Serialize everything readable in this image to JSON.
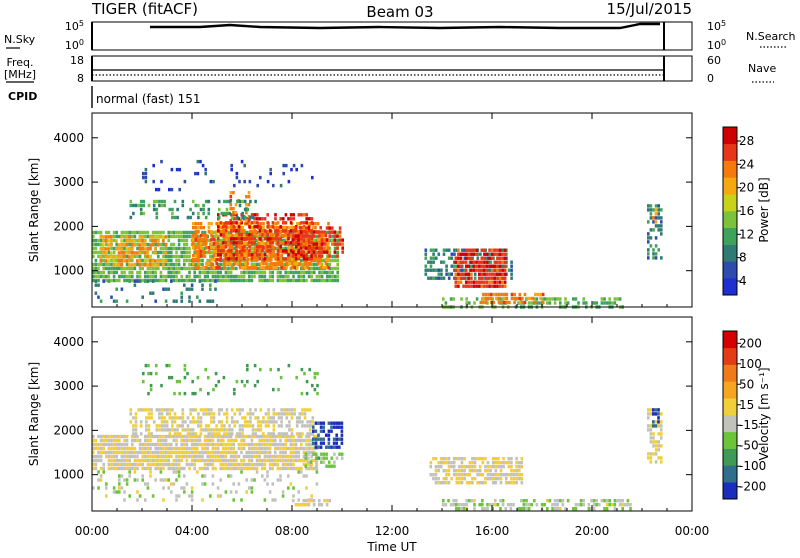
{
  "header": {
    "radar": "TIGER (fitACF)",
    "beam": "Beam 03",
    "date": "15/Jul/2015"
  },
  "ctrl": {
    "nsky_label": "N.Sky",
    "nsearch_label": "N.Search",
    "freq_label_1": "Freq.",
    "freq_label_2": "[MHz]",
    "nave_label": "Nave",
    "cpid_label": "CPID",
    "cpid_value": "normal (fast) 151",
    "noise_ticks_left": [
      "10^5",
      "10^0"
    ],
    "noise_ticks_right": [
      "10^5",
      "10^0"
    ],
    "freq_ticks": [
      "18",
      "8"
    ],
    "nave_ticks": [
      "60",
      "0"
    ]
  },
  "colors": {
    "power_scale": [
      "#1d2fd0",
      "#2e4cad",
      "#2f7a73",
      "#3fa25a",
      "#7cc23a",
      "#c9d21a",
      "#f5a80f",
      "#f57a0c",
      "#e8361a",
      "#d00000"
    ],
    "velocity_scale": [
      "#1a2ebd",
      "#2f6e8c",
      "#3f9a55",
      "#6cc43a",
      "#c2c2bc",
      "#f1cf3a",
      "#f5a51f",
      "#ef7a18",
      "#e33b15",
      "#d40000"
    ]
  },
  "chart_data": [
    {
      "type": "heatmap",
      "name": "power-panel",
      "xlabel": "",
      "ylabel": "Slant Range [km]",
      "x_range_ut_hours": [
        0,
        24
      ],
      "ylim": [
        180,
        4560
      ],
      "yticks": [
        "4000",
        "3000",
        "2000",
        "1000"
      ],
      "ytick_values": [
        4000,
        3000,
        2000,
        1000
      ],
      "colorbar": {
        "label": "Power [dB]",
        "ticks": [
          "28",
          "24",
          "20",
          "16",
          "12",
          "8",
          "4"
        ],
        "range": [
          0,
          30
        ]
      },
      "regions": [
        {
          "t": [
            0.0,
            9.8
          ],
          "r": [
            800,
            1900
          ],
          "value": 12,
          "density": 0.8
        },
        {
          "t": [
            0.3,
            3.0
          ],
          "r": [
            1100,
            1800
          ],
          "value": 20,
          "density": 0.6
        },
        {
          "t": [
            4.0,
            9.5
          ],
          "r": [
            1100,
            2100
          ],
          "value": 22,
          "density": 0.7
        },
        {
          "t": [
            5.0,
            8.8
          ],
          "r": [
            1300,
            2300
          ],
          "value": 26,
          "density": 0.6
        },
        {
          "t": [
            8.0,
            10.0
          ],
          "r": [
            1300,
            2000
          ],
          "value": 26,
          "density": 0.6
        },
        {
          "t": [
            5.5,
            6.3
          ],
          "r": [
            2100,
            2800
          ],
          "value": 22,
          "density": 0.4
        },
        {
          "t": [
            1.5,
            6.5
          ],
          "r": [
            2200,
            2600
          ],
          "value": 10,
          "density": 0.35
        },
        {
          "t": [
            2.0,
            9.0
          ],
          "r": [
            2800,
            3500
          ],
          "value": 4,
          "density": 0.1
        },
        {
          "t": [
            0.0,
            5.0
          ],
          "r": [
            300,
            800
          ],
          "value": 8,
          "density": 0.2
        },
        {
          "t": [
            13.3,
            16.8
          ],
          "r": [
            800,
            1500
          ],
          "value": 8,
          "density": 0.6
        },
        {
          "t": [
            14.5,
            16.5
          ],
          "r": [
            600,
            1500
          ],
          "value": 26,
          "density": 0.8
        },
        {
          "t": [
            14.0,
            21.2
          ],
          "r": [
            200,
            400
          ],
          "value": 12,
          "density": 0.5
        },
        {
          "t": [
            15.5,
            18.0
          ],
          "r": [
            250,
            500
          ],
          "value": 22,
          "density": 0.6
        },
        {
          "t": [
            22.2,
            22.8
          ],
          "r": [
            1300,
            2500
          ],
          "value": 8,
          "density": 0.5
        },
        {
          "t": [
            22.4,
            22.6
          ],
          "r": [
            2100,
            2500
          ],
          "value": 20,
          "density": 0.5
        }
      ]
    },
    {
      "type": "heatmap",
      "name": "velocity-panel",
      "xlabel": "Time UT",
      "ylabel": "Slant Range [km]",
      "x_range_ut_hours": [
        0,
        24
      ],
      "ylim": [
        180,
        4560
      ],
      "yticks": [
        "4000",
        "3000",
        "2000",
        "1000"
      ],
      "ytick_values": [
        4000,
        3000,
        2000,
        1000
      ],
      "xticks": [
        "00:00",
        "04:00",
        "08:00",
        "12:00",
        "16:00",
        "20:00",
        "00:00"
      ],
      "xtick_values": [
        0,
        4,
        8,
        12,
        16,
        20,
        24
      ],
      "colorbar": {
        "label": "Velocity [m s⁻¹]",
        "ticks": [
          "200",
          "100",
          "50",
          "15",
          "-15",
          "-50",
          "-100",
          "-200"
        ],
        "range": [
          -250,
          250
        ]
      },
      "regions": [
        {
          "t": [
            0.0,
            9.0
          ],
          "r": [
            1100,
            1900
          ],
          "value": 0,
          "density": 0.85
        },
        {
          "t": [
            1.5,
            8.8
          ],
          "r": [
            1900,
            2500
          ],
          "value": 0,
          "density": 0.6
        },
        {
          "t": [
            8.8,
            10.0
          ],
          "r": [
            1600,
            2200
          ],
          "value": -200,
          "density": 0.7
        },
        {
          "t": [
            8.5,
            10.0
          ],
          "r": [
            1200,
            1500
          ],
          "value": -60,
          "density": 0.6
        },
        {
          "t": [
            0.0,
            9.0
          ],
          "r": [
            400,
            1100
          ],
          "value": -30,
          "density": 0.2
        },
        {
          "t": [
            2.0,
            9.0
          ],
          "r": [
            2800,
            3500
          ],
          "value": -100,
          "density": 0.15
        },
        {
          "t": [
            13.5,
            17.2
          ],
          "r": [
            800,
            1400
          ],
          "value": 0,
          "density": 0.7
        },
        {
          "t": [
            14.0,
            21.5
          ],
          "r": [
            200,
            450
          ],
          "value": -40,
          "density": 0.5
        },
        {
          "t": [
            8.0,
            9.5
          ],
          "r": [
            350,
            450
          ],
          "value": 0,
          "density": 0.6
        },
        {
          "t": [
            22.2,
            22.8
          ],
          "r": [
            1300,
            2500
          ],
          "value": 0,
          "density": 0.5
        },
        {
          "t": [
            22.4,
            22.7
          ],
          "r": [
            2100,
            2500
          ],
          "value": -200,
          "density": 0.6
        }
      ]
    }
  ]
}
